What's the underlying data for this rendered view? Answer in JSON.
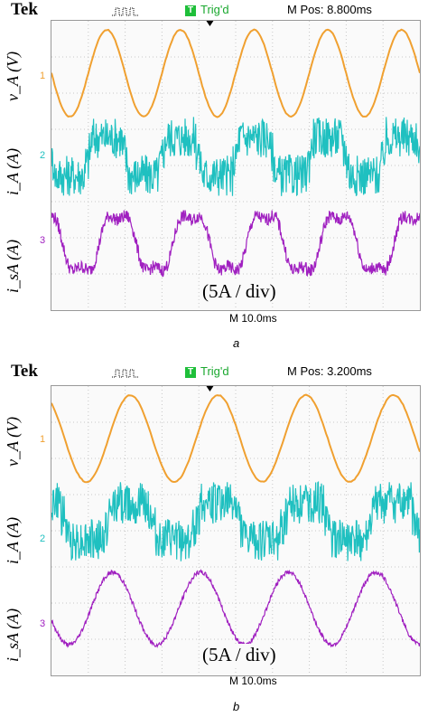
{
  "panels": [
    {
      "brand": "Tek",
      "trigger_icon": "T",
      "trigger_status": "Trig'd",
      "position": "M Pos: 8.800ms",
      "scale": "(5A / div)",
      "timebase": "M 10.0ms",
      "caption": "a",
      "axis_labels": [
        "v_A (V)",
        "i_A (A)",
        "i_sA (A)"
      ],
      "channel_markers": [
        "1",
        "2",
        "3"
      ]
    },
    {
      "brand": "Tek",
      "trigger_icon": "T",
      "trigger_status": "Trig'd",
      "position": "M Pos: 3.200ms",
      "scale": "(5A / div)",
      "timebase": "M 10.0ms",
      "caption": "b",
      "axis_labels": [
        "v_A (V)",
        "i_A (A)",
        "i_sA (A)"
      ],
      "channel_markers": [
        "1",
        "2",
        "3"
      ]
    }
  ],
  "colors": {
    "ch1": "#f0a030",
    "ch2": "#1fc0c0",
    "ch3": "#a020c0",
    "trigger": "#1fbf3a"
  },
  "chart_data": [
    {
      "type": "line",
      "time_div_ms": 10,
      "divisions": 10,
      "series": [
        {
          "name": "v_A",
          "waveform": "sinusoid",
          "cycles_shown": 5,
          "phase": 0.5,
          "noise": 0.02
        },
        {
          "name": "i_A",
          "waveform": "switched pulses",
          "cycles_shown": 5,
          "phase": 0.5,
          "noise": 0.55
        },
        {
          "name": "i_sA",
          "waveform": "distorted sinusoid",
          "cycles_shown": 5,
          "phase": 0.35,
          "noise": 0.35
        }
      ]
    },
    {
      "type": "line",
      "time_div_ms": 10,
      "divisions": 10,
      "series": [
        {
          "name": "v_A",
          "waveform": "sinusoid",
          "cycles_shown": 4.2,
          "phase": 0.35,
          "noise": 0.02
        },
        {
          "name": "i_A",
          "waveform": "switched pulses",
          "cycles_shown": 4.2,
          "phase": 0.35,
          "noise": 0.55
        },
        {
          "name": "i_sA",
          "waveform": "sinusoid with ripple",
          "cycles_shown": 4.2,
          "phase": 0.55,
          "noise": 0.12
        }
      ]
    }
  ]
}
